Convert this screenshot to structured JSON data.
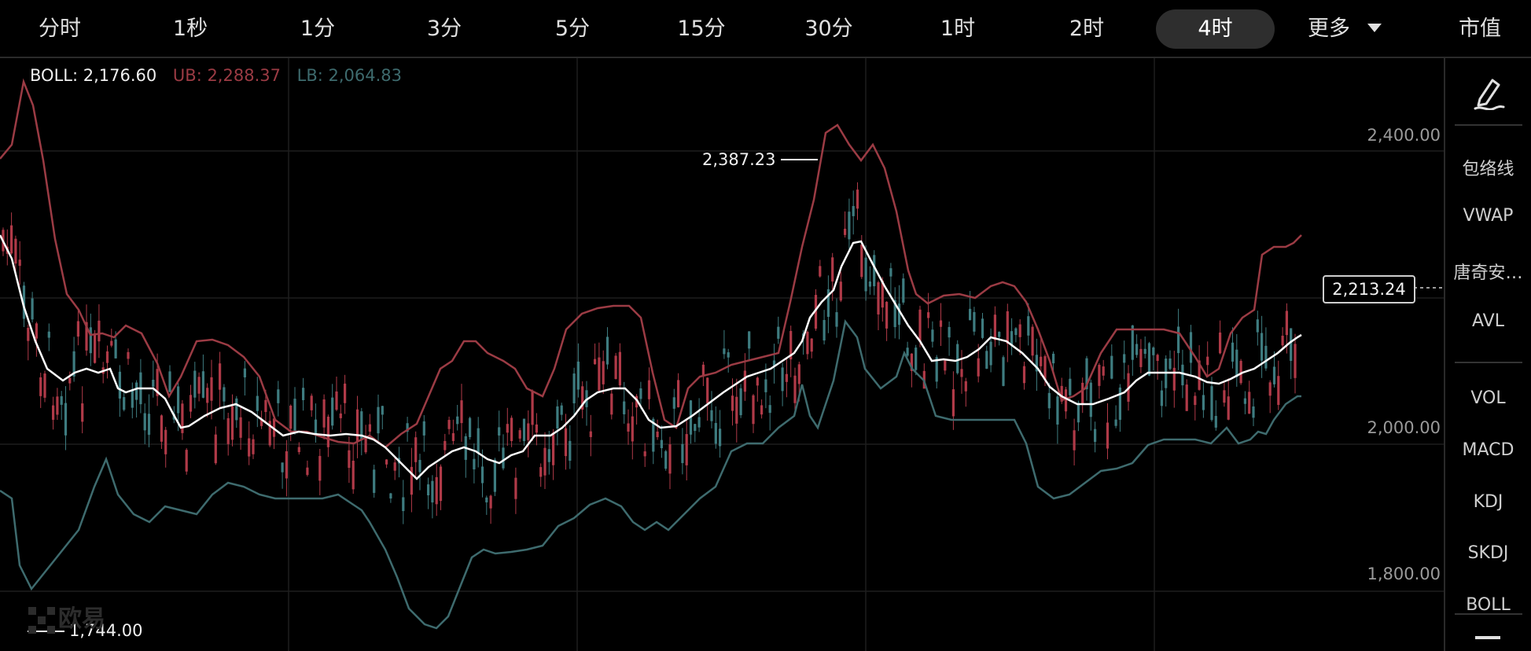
{
  "tabs": [
    "分时",
    "1秒",
    "1分",
    "3分",
    "5分",
    "15分",
    "30分",
    "1时",
    "2时",
    "4时",
    "更多",
    "市值"
  ],
  "active_tab": "4时",
  "legend": {
    "boll": "BOLL: 2,176.60",
    "ub": "UB: 2,288.37",
    "lb": "LB: 2,064.83"
  },
  "y_axis": [
    "2,400.00",
    "2,000.00",
    "1,800.00"
  ],
  "current_price": "2,213.24",
  "annotations": {
    "high": "2,387.23",
    "low": "1,744.00"
  },
  "watermark": "欧易",
  "side_panel": {
    "draw_tool": "pen-icon",
    "items": [
      "包络线",
      "VWAP",
      "唐奇安…",
      "AVL",
      "VOL",
      "MACD",
      "KDJ",
      "SKDJ",
      "BOLL"
    ]
  },
  "colors": {
    "background": "#000000",
    "up": "#3e7c80",
    "down": "#b03a48",
    "ub_line": "#9b3b44",
    "lb_line": "#3e6b6e",
    "mid_line": "#ffffff"
  },
  "chart_data": {
    "type": "candlestick",
    "indicator": "BOLL",
    "y_ticks": [
      2400,
      2000,
      1800
    ],
    "high": 2387.23,
    "low": 1744.0,
    "last": 2213.24,
    "boll_mid": 2176.6,
    "boll_ub": 2288.37,
    "boll_lb": 2064.83
  }
}
